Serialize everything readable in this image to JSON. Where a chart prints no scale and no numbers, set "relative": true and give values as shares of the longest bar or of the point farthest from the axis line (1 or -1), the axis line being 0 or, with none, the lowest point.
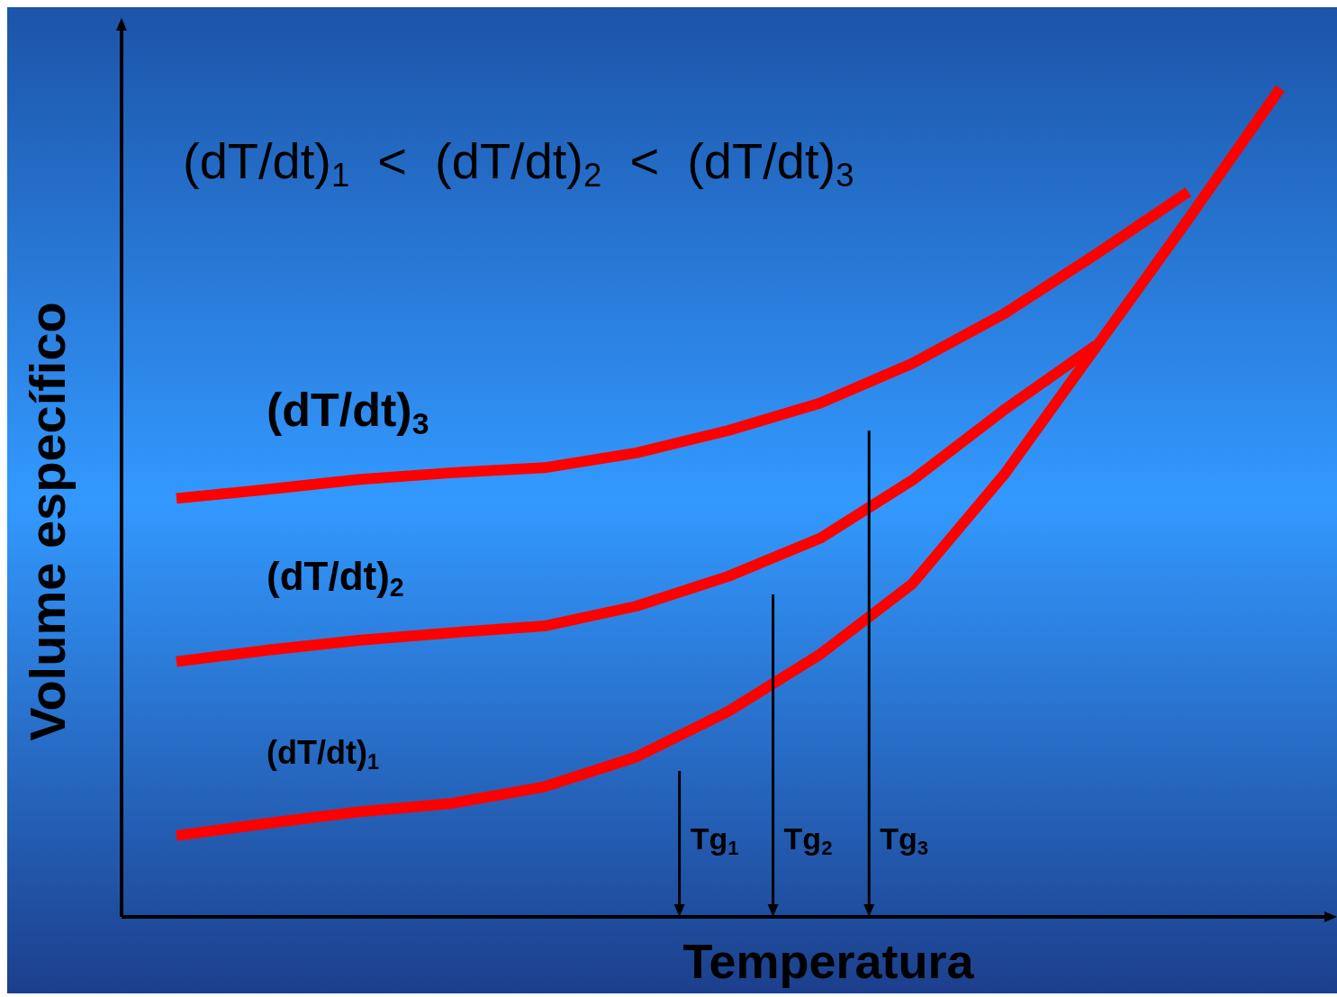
{
  "chart_data": {
    "type": "line",
    "relative": true,
    "xlabel": "Temperatura",
    "ylabel": "Volume específico",
    "legend": false,
    "categories": [
      null,
      null,
      null,
      null,
      null,
      null,
      null,
      null,
      null,
      null,
      null,
      null,
      null
    ],
    "series": [
      {
        "name": "(dT/dt)$_{1}$",
        "color": "#ff0000",
        "values": [
          0.098,
          0.113,
          0.127,
          0.137,
          0.157,
          0.193,
          0.248,
          0.317,
          0.402,
          0.534,
          0.688,
          0.842,
          1.0
        ]
      },
      {
        "name": "(dT/dt)$_{2}$",
        "color": "#ff0000",
        "values": [
          0.308,
          0.322,
          0.334,
          0.343,
          0.351,
          0.375,
          0.411,
          0.457,
          0.527,
          0.612,
          0.69,
          null,
          null
        ]
      },
      {
        "name": "(dT/dt)$_{3}$",
        "color": "#ff0000",
        "values": [
          0.505,
          0.516,
          0.528,
          0.536,
          0.542,
          0.56,
          0.587,
          0.62,
          0.668,
          0.728,
          0.8,
          0.875,
          null
        ]
      }
    ],
    "annotations": [
      "(dT/dt)$_{1}$  <  (dT/dt)$_{2}$  <  (dT/dt)$_{3}$",
      "Tg$_{1}$",
      "Tg$_{2}$",
      "Tg$_{3}$"
    ]
  }
}
